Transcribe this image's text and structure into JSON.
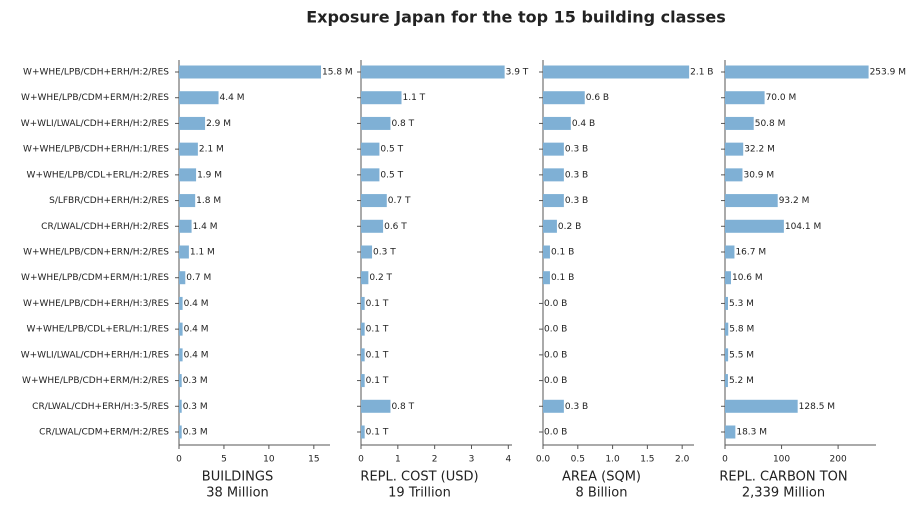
{
  "title": "Exposure Japan for the top 15 building classes",
  "chart_data": [
    {
      "type": "bar",
      "orientation": "horizontal",
      "categories": [
        "W+WHE/LPB/CDH+ERH/H:2/RES",
        "W+WHE/LPB/CDM+ERM/H:2/RES",
        "W+WLI/LWAL/CDH+ERH/H:2/RES",
        "W+WHE/LPB/CDH+ERH/H:1/RES",
        "W+WHE/LPB/CDL+ERL/H:2/RES",
        "S/LFBR/CDH+ERH/H:2/RES",
        "CR/LWAL/CDH+ERH/H:2/RES",
        "W+WHE/LPB/CDN+ERN/H:2/RES",
        "W+WHE/LPB/CDM+ERM/H:1/RES",
        "W+WHE/LPB/CDH+ERH/H:3/RES",
        "W+WHE/LPB/CDL+ERL/H:1/RES",
        "W+WLI/LWAL/CDH+ERH/H:1/RES",
        "W+WHE/LPB/CDH+ERM/H:2/RES",
        "CR/LWAL/CDH+ERH/H:3-5/RES",
        "CR/LWAL/CDM+ERM/H:2/RES"
      ],
      "values": [
        15.8,
        4.4,
        2.9,
        2.1,
        1.9,
        1.8,
        1.4,
        1.1,
        0.7,
        0.4,
        0.4,
        0.4,
        0.3,
        0.3,
        0.3
      ],
      "value_labels": [
        "15.8 M",
        "4.4 M",
        "2.9 M",
        "2.1 M",
        "1.9 M",
        "1.8 M",
        "1.4 M",
        "1.1 M",
        "0.7 M",
        "0.4 M",
        "0.4 M",
        "0.4 M",
        "0.3 M",
        "0.3 M",
        "0.3 M"
      ],
      "color": "#7fb0d5",
      "xlim": [
        0,
        16.8
      ],
      "xticks": [
        0,
        5,
        10,
        15
      ],
      "xlabel": "BUILDINGS",
      "xlabel_note": "38 Million"
    },
    {
      "type": "bar",
      "orientation": "horizontal",
      "values": [
        3.9,
        1.1,
        0.8,
        0.5,
        0.5,
        0.7,
        0.6,
        0.3,
        0.2,
        0.1,
        0.1,
        0.1,
        0.1,
        0.8,
        0.1
      ],
      "value_labels": [
        "3.9 T",
        "1.1 T",
        "0.8 T",
        "0.5 T",
        "0.5 T",
        "0.7 T",
        "0.6 T",
        "0.3 T",
        "0.2 T",
        "0.1 T",
        "0.1 T",
        "0.1 T",
        "0.1 T",
        "0.8 T",
        "0.1 T"
      ],
      "color": "#7fb0d5",
      "xlim": [
        0,
        4.1
      ],
      "xticks": [
        0,
        1,
        2,
        3,
        4
      ],
      "xlabel": "REPL. COST (USD)",
      "xlabel_note": "19 Trillion"
    },
    {
      "type": "bar",
      "orientation": "horizontal",
      "values": [
        2.1,
        0.6,
        0.4,
        0.3,
        0.3,
        0.3,
        0.2,
        0.1,
        0.1,
        0,
        0,
        0,
        0,
        0.3,
        0
      ],
      "value_labels": [
        "2.1 B",
        "0.6 B",
        "0.4 B",
        "0.3 B",
        "0.3 B",
        "0.3 B",
        "0.2 B",
        "0.1 B",
        "0.1 B",
        "0.0 B",
        "0.0 B",
        "0.0 B",
        "0.0 B",
        "0.3 B",
        "0.0 B"
      ],
      "color": "#7fb0d5",
      "xlim": [
        0,
        2.17
      ],
      "xticks": [
        {
          "value": 0,
          "label": "0.0"
        },
        0.5,
        {
          "value": 1,
          "label": "1.0"
        },
        1.5,
        {
          "value": 2,
          "label": "2.0"
        }
      ],
      "xlabel": "AREA (SQM)",
      "xlabel_note": "8 Billion"
    },
    {
      "type": "bar",
      "orientation": "horizontal",
      "values": [
        253.9,
        70,
        50.8,
        32.2,
        30.9,
        93.2,
        104.1,
        16.7,
        10.6,
        5.3,
        5.8,
        5.5,
        5.2,
        128.5,
        18.3
      ],
      "value_labels": [
        "253.9 M",
        "70.0 M",
        "50.8 M",
        "32.2 M",
        "30.9 M",
        "93.2 M",
        "104.1 M",
        "16.7 M",
        "10.6 M",
        "5.3 M",
        "5.8 M",
        "5.5 M",
        "5.2 M",
        "128.5 M",
        "18.3 M"
      ],
      "color": "#7fb0d5",
      "xlim": [
        0,
        267
      ],
      "xticks": [
        0,
        100,
        200
      ],
      "xlabel": "REPL. CARBON TON",
      "xlabel_note": "2,339 Million"
    }
  ]
}
